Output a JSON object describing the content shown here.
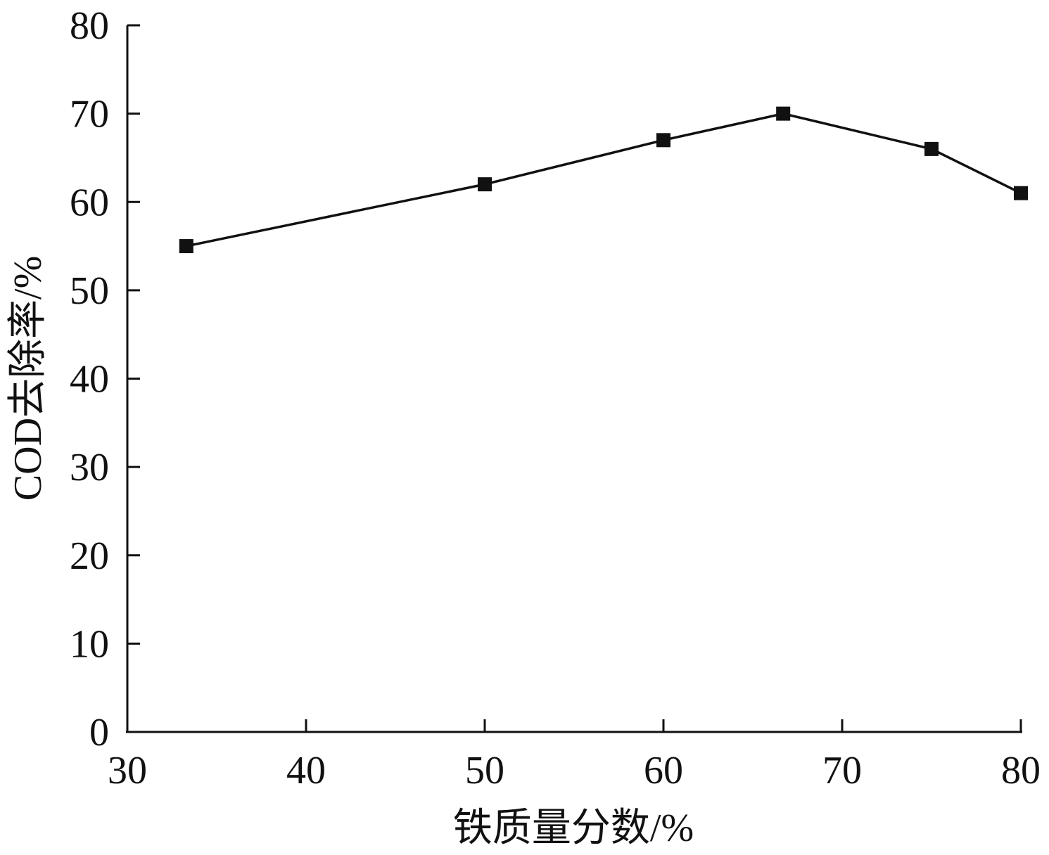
{
  "chart_data": {
    "type": "line",
    "xlabel": "铁质量分数/%",
    "ylabel": "COD去除率/%",
    "xlim": [
      30,
      80
    ],
    "ylim": [
      0,
      80
    ],
    "xticks": [
      30,
      40,
      50,
      60,
      70,
      80
    ],
    "yticks": [
      0,
      10,
      20,
      30,
      40,
      50,
      60,
      70,
      80
    ],
    "grid": false,
    "series": [
      {
        "marker": "square",
        "color": "#111111",
        "x": [
          33.3,
          50,
          60,
          66.7,
          75,
          80
        ],
        "y": [
          55,
          62,
          67,
          70,
          66,
          61
        ]
      }
    ]
  }
}
